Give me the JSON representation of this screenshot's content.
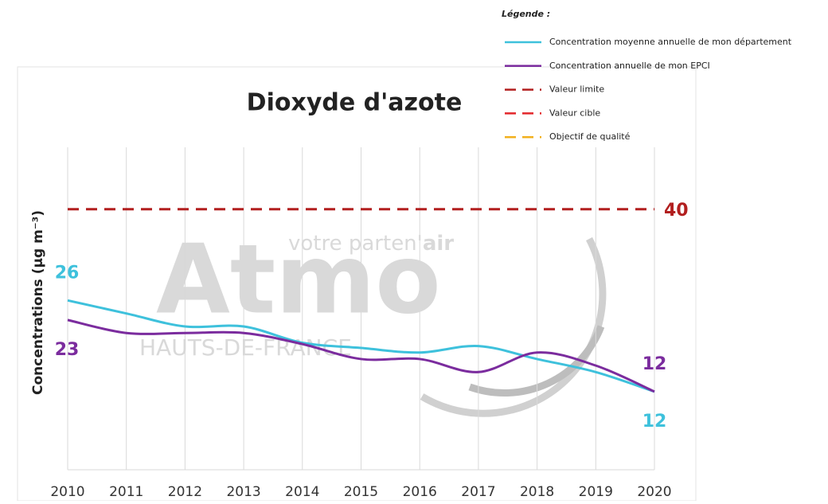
{
  "chart_data": {
    "type": "line",
    "title": "Dioxyde d'azote",
    "y_label": "Concentrations (µg m⁻³)",
    "categories": [
      "2010",
      "2011",
      "2012",
      "2013",
      "2014",
      "2015",
      "2016",
      "2017",
      "2018",
      "2019",
      "2020"
    ],
    "series": [
      {
        "name": "Concentration moyenne annuelle de mon département",
        "color": "#3ec1dc",
        "values": [
          26,
          24,
          22,
          22,
          19.5,
          18.7,
          18,
          19,
          17,
          15,
          12
        ]
      },
      {
        "name": "Concentration annuelle de mon EPCI",
        "color": "#7b2c9e",
        "values": [
          23,
          21,
          21,
          21,
          19.3,
          17,
          17,
          15,
          18,
          16,
          12
        ]
      }
    ],
    "reference_lines": [
      {
        "name": "Valeur limite",
        "color": "#b21f1f",
        "value": 40
      },
      {
        "name": "Valeur cible",
        "color": "#e3262a"
      },
      {
        "name": "Objectif de qualité",
        "color": "#f2b01e"
      }
    ],
    "legend_title": "Légende :",
    "ylim": [
      0,
      50
    ],
    "grid": true,
    "watermark": {
      "brand": "Atmo",
      "tagline": "votre parten'",
      "tagline_bold": "air",
      "region": "HAUTS-DE-FRANCE"
    }
  }
}
